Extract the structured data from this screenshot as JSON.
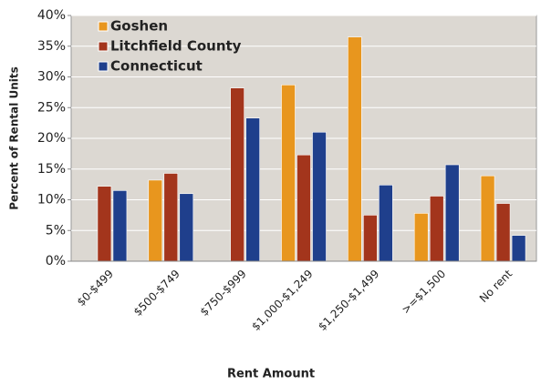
{
  "chart_data": {
    "type": "bar",
    "categories": [
      "$0-$499",
      "$500-$749",
      "$750-$999",
      "$1,000-$1,249",
      "$1,250-$1,499",
      ">=$1,500",
      "No rent"
    ],
    "series": [
      {
        "name": "Goshen",
        "color": "#e8961e",
        "values": [
          0,
          13.2,
          0,
          28.7,
          36.5,
          7.8,
          13.9
        ]
      },
      {
        "name": "Litchfield County",
        "color": "#a3351c",
        "values": [
          12.2,
          14.3,
          28.2,
          17.3,
          7.5,
          10.6,
          9.4
        ]
      },
      {
        "name": "Connecticut",
        "color": "#1f3f8c",
        "values": [
          11.5,
          11.0,
          23.3,
          21.0,
          12.4,
          15.7,
          4.2
        ]
      }
    ],
    "xlabel": "Rent Amount",
    "ylabel": "Percent of Rental Units",
    "ylim": [
      0,
      40
    ],
    "yticks": [
      {
        "value": 0,
        "label": "0%"
      },
      {
        "value": 5,
        "label": "5%"
      },
      {
        "value": 10,
        "label": "10%"
      },
      {
        "value": 15,
        "label": "15%"
      },
      {
        "value": 20,
        "label": "20%"
      },
      {
        "value": 25,
        "label": "25%"
      },
      {
        "value": 30,
        "label": "30%"
      },
      {
        "value": 35,
        "label": "35%"
      },
      {
        "value": 40,
        "label": "40%"
      }
    ],
    "grid": true,
    "legend": "upper left",
    "plot_background": "#dcd8d2"
  }
}
